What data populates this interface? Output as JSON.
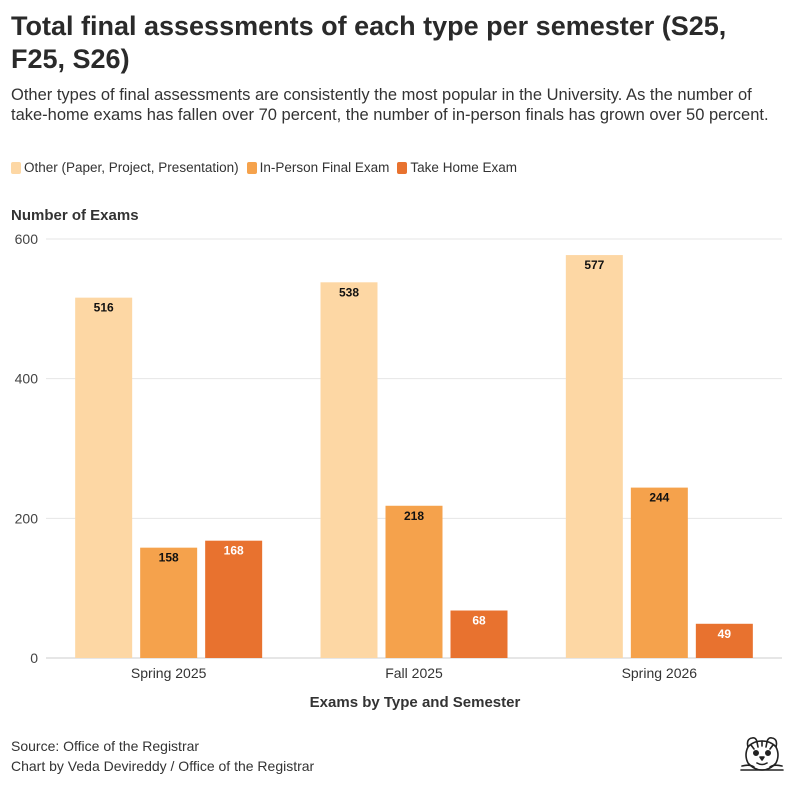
{
  "title": "Total final assessments of each type per semester (S25, F25, S26)",
  "subtitle": "Other types of final assessments are consistently the most popular in the University. As the number of take-home exams has fallen over 70 percent, the number of in-person finals has grown over 50 percent.",
  "colors": {
    "other": "#fdd7a4",
    "in_person": "#f5a24c",
    "take_home": "#e8722f",
    "gridline": "#e6e6e6",
    "axis": "#cccccc"
  },
  "footer": {
    "source": "Source: Office of the Registrar",
    "credit": "Chart by Veda Devireddy / Office of the Registrar"
  },
  "chart_data": {
    "type": "bar",
    "title": "Total final assessments of each type per semester (S25, F25, S26)",
    "xlabel": "Exams by Type and Semester",
    "ylabel": "Number of Exams",
    "ylim": [
      0,
      600
    ],
    "yticks": [
      0,
      200,
      400,
      600
    ],
    "grid": true,
    "legend_position": "top-left",
    "categories": [
      "Spring 2025",
      "Fall 2025",
      "Spring 2026"
    ],
    "series": [
      {
        "name": "Other (Paper, Project, Presentation)",
        "key": "other",
        "values": [
          516,
          538,
          577
        ]
      },
      {
        "name": "In-Person Final Exam",
        "key": "in_person",
        "values": [
          158,
          218,
          244
        ]
      },
      {
        "name": "Take Home Exam",
        "key": "take_home",
        "values": [
          168,
          68,
          49
        ]
      }
    ]
  }
}
